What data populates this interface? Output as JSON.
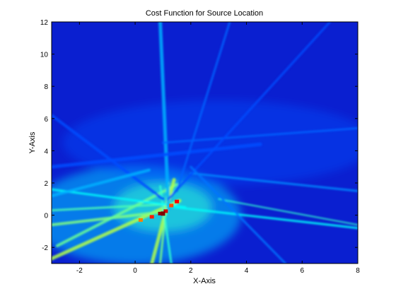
{
  "chart_data": {
    "type": "heatmap",
    "title": "Cost Function for Source Location",
    "xlabel": "X-Axis",
    "ylabel": "Y-Axis",
    "xlim": [
      -3,
      8
    ],
    "ylim": [
      -3,
      12
    ],
    "xticks": [
      -2,
      0,
      2,
      4,
      6,
      8
    ],
    "yticks": [
      -2,
      0,
      2,
      4,
      6,
      8,
      10,
      12
    ],
    "colormap": "jet",
    "background_color": "#0a1fd0",
    "peak": {
      "x": 1.0,
      "y": 0.1
    },
    "hot_spots": [
      {
        "x": 0.9,
        "y": 0.1,
        "v": 0.98
      },
      {
        "x": 1.1,
        "y": 0.25,
        "v": 0.92
      },
      {
        "x": 0.6,
        "y": -0.1,
        "v": 0.85
      },
      {
        "x": 1.5,
        "y": 0.85,
        "v": 0.88
      },
      {
        "x": 0.2,
        "y": -0.3,
        "v": 0.75
      },
      {
        "x": 1.3,
        "y": 0.6,
        "v": 0.8
      }
    ],
    "streaks": [
      {
        "from": [
          -3,
          -2.7
        ],
        "to": [
          1.6,
          0.9
        ],
        "v": 0.55,
        "w": 5
      },
      {
        "from": [
          -3,
          -0.6
        ],
        "to": [
          1.0,
          0.2
        ],
        "v": 0.5,
        "w": 4
      },
      {
        "from": [
          -3,
          0.3
        ],
        "to": [
          1.4,
          0.7
        ],
        "v": 0.45,
        "w": 3
      },
      {
        "from": [
          -2.8,
          -1.9
        ],
        "to": [
          1.5,
          1.9
        ],
        "v": 0.48,
        "w": 4
      },
      {
        "from": [
          0.6,
          -3
        ],
        "to": [
          1.4,
          2.2
        ],
        "v": 0.55,
        "w": 5
      },
      {
        "from": [
          0.9,
          -3
        ],
        "to": [
          1.2,
          2.0
        ],
        "v": 0.5,
        "w": 3
      },
      {
        "from": [
          1.3,
          -3
        ],
        "to": [
          0.9,
          1.8
        ],
        "v": 0.42,
        "w": 3
      },
      {
        "from": [
          -3,
          1.6
        ],
        "to": [
          1.8,
          0.5
        ],
        "v": 0.38,
        "w": 3
      },
      {
        "from": [
          0.9,
          12
        ],
        "to": [
          1.2,
          0.4
        ],
        "v": 0.3,
        "w": 5
      },
      {
        "from": [
          1.4,
          0.5
        ],
        "to": [
          8,
          -0.8
        ],
        "v": 0.38,
        "w": 3
      },
      {
        "from": [
          3.0,
          1.0
        ],
        "to": [
          8,
          -0.6
        ],
        "v": 0.42,
        "w": 2
      },
      {
        "from": [
          2.0,
          2.6
        ],
        "to": [
          8,
          1.5
        ],
        "v": 0.26,
        "w": 3
      },
      {
        "from": [
          1.0,
          4.5
        ],
        "to": [
          8,
          5.4
        ],
        "v": 0.22,
        "w": 3
      },
      {
        "from": [
          -3,
          3.0
        ],
        "to": [
          4.5,
          4.4
        ],
        "v": 0.2,
        "w": 5
      },
      {
        "from": [
          1.5,
          1.5
        ],
        "to": [
          3.4,
          12
        ],
        "v": 0.22,
        "w": 3
      },
      {
        "from": [
          1.2,
          1.0
        ],
        "to": [
          7.0,
          12
        ],
        "v": 0.2,
        "w": 3
      },
      {
        "from": [
          -3,
          6.2
        ],
        "to": [
          1.0,
          1.0
        ],
        "v": 0.2,
        "w": 4
      },
      {
        "from": [
          5.4,
          -3
        ],
        "to": [
          2.0,
          3.0
        ],
        "v": 0.24,
        "w": 3
      },
      {
        "from": [
          -3,
          1.2
        ],
        "to": [
          0.5,
          2.8
        ],
        "v": 0.3,
        "w": 4
      }
    ]
  }
}
